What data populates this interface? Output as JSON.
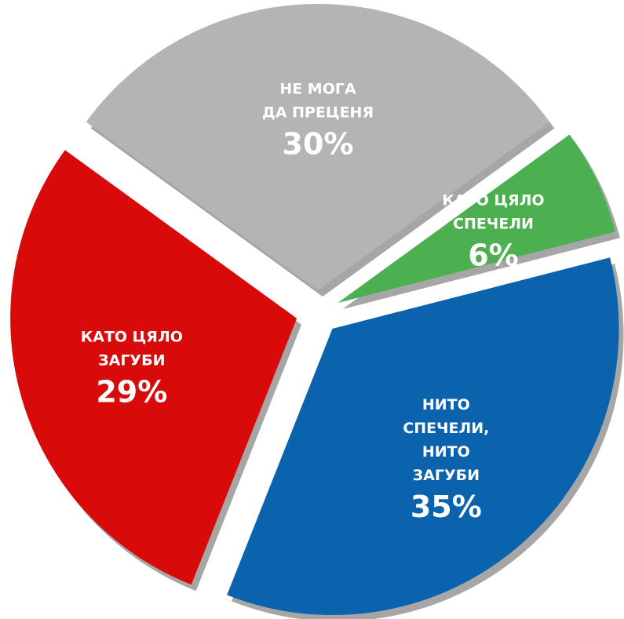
{
  "chart_data": {
    "type": "pie",
    "categories": [
      [
        "НЕ МОГА",
        "ДА ПРЕЦЕНЯ"
      ],
      [
        "КАТО ЦЯЛО",
        "СПЕЧЕЛИ"
      ],
      [
        "НИТО",
        "СПЕЧЕЛИ,",
        "НИТО",
        "ЗАГУБИ"
      ],
      [
        "КАТО ЦЯЛО",
        "ЗАГУБИ"
      ]
    ],
    "values": [
      30,
      6,
      35,
      29
    ],
    "value_labels": [
      "30%",
      "6%",
      "35%",
      "29%"
    ],
    "colors": [
      "#b4b4b4",
      "#4caf50",
      "#0b62ad",
      "#d80a0a"
    ]
  }
}
